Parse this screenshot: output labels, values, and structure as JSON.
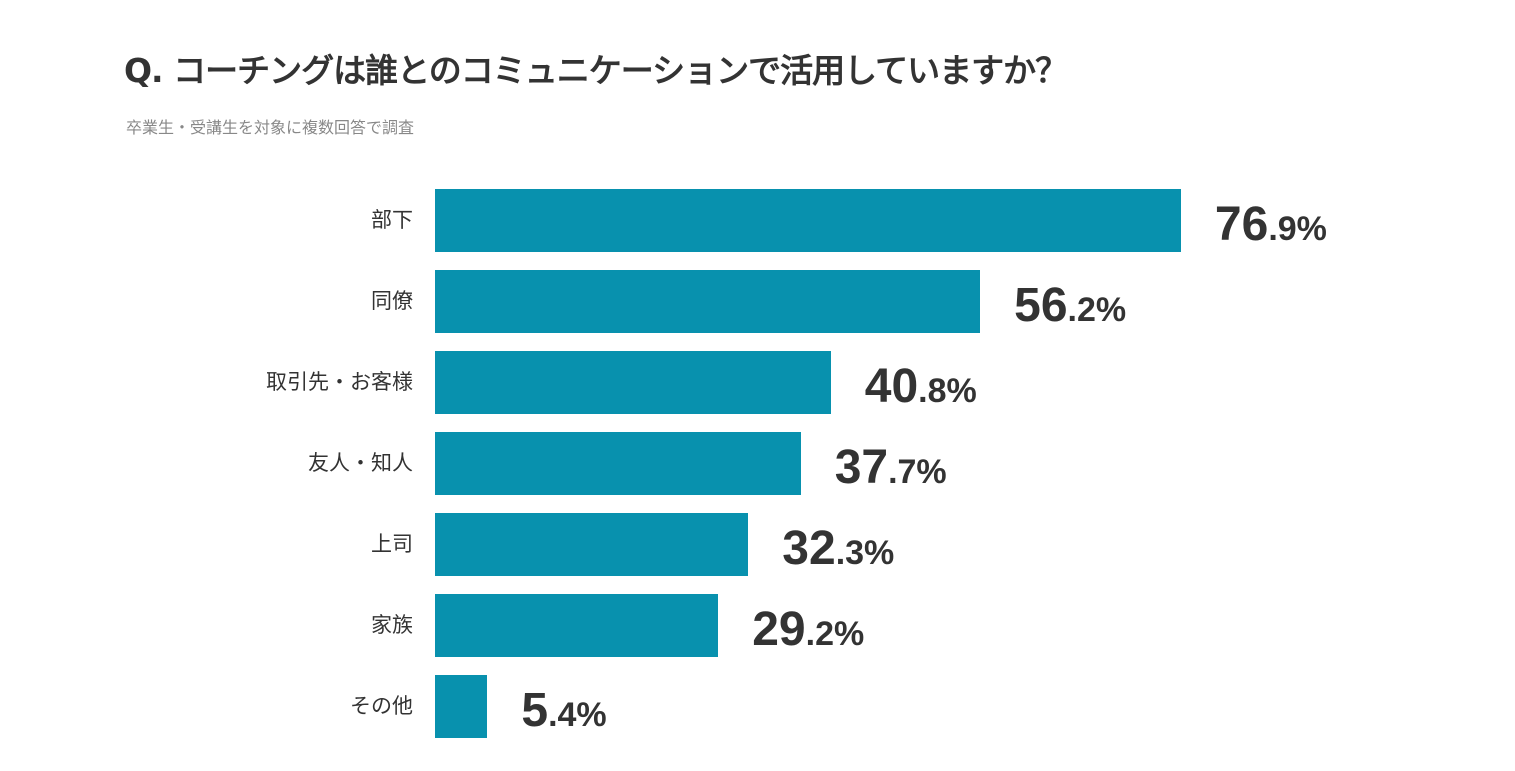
{
  "title": "Q. コーチングは誰とのコミュニケーションで活用していますか？",
  "subtitle": "卒業生・受講生を対象に複数回答で調査",
  "colors": {
    "bar": "#0891AE",
    "text": "#333333"
  },
  "chart_data": {
    "type": "bar",
    "orientation": "horizontal",
    "title": "Q. コーチングは誰とのコミュニケーションで活用していますか？",
    "subtitle": "卒業生・受講生を対象に複数回答で調査",
    "categories": [
      "部下",
      "同僚",
      "取引先・お客様",
      "友人・知人",
      "上司",
      "家族",
      "その他"
    ],
    "values": [
      76.9,
      56.2,
      40.8,
      37.7,
      32.3,
      29.2,
      5.4
    ],
    "value_labels": [
      {
        "int": "76",
        "dec": ".9%"
      },
      {
        "int": "56",
        "dec": ".2%"
      },
      {
        "int": "40",
        "dec": ".8%"
      },
      {
        "int": "37",
        "dec": ".7%"
      },
      {
        "int": "32",
        "dec": ".3%"
      },
      {
        "int": "29",
        "dec": ".2%"
      },
      {
        "int": "5",
        "dec": ".4%"
      }
    ],
    "unit": "%",
    "xlim": [
      0,
      100
    ],
    "grid": false,
    "legend": "none"
  }
}
